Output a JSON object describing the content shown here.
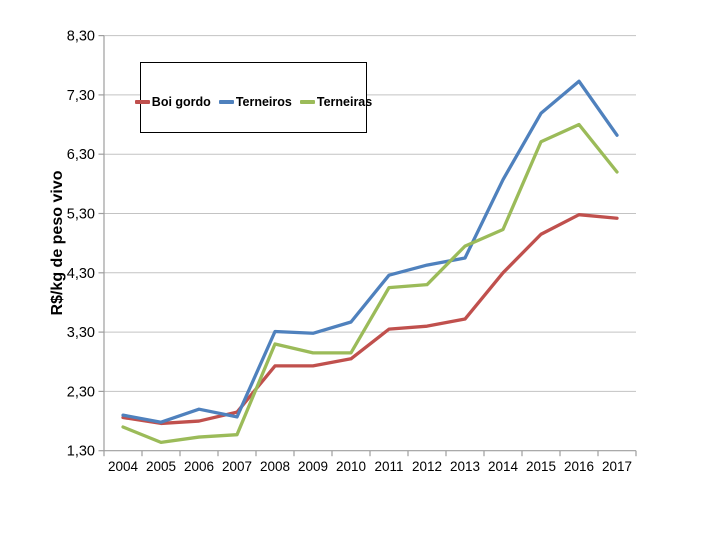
{
  "page": {
    "background": "#ffffff"
  },
  "chart_data": {
    "type": "line",
    "title": "",
    "xlabel": "",
    "ylabel": "R$/kg de peso vivo",
    "x": [
      "2004",
      "2005",
      "2006",
      "2007",
      "2008",
      "2009",
      "2010",
      "2011",
      "2012",
      "2013",
      "2014",
      "2015",
      "2016",
      "2017"
    ],
    "series": [
      {
        "name": "Boi gordo",
        "color": "#C0504D",
        "values": [
          1.86,
          1.76,
          1.8,
          1.95,
          2.73,
          2.73,
          2.85,
          3.35,
          3.4,
          3.52,
          4.3,
          4.95,
          5.28,
          5.22
        ]
      },
      {
        "name": "Terneiros",
        "color": "#4F81BD",
        "values": [
          1.9,
          1.78,
          2.0,
          1.87,
          3.31,
          3.28,
          3.47,
          4.26,
          4.43,
          4.55,
          5.87,
          6.99,
          7.53,
          6.62
        ]
      },
      {
        "name": "Terneiras",
        "color": "#9BBB59",
        "values": [
          1.7,
          1.44,
          1.53,
          1.57,
          3.1,
          2.95,
          2.95,
          4.05,
          4.1,
          4.75,
          5.03,
          6.51,
          6.8,
          6.0
        ]
      }
    ],
    "ylim": [
      1.3,
      8.3
    ],
    "ytick_step": 1.0,
    "ytick_labels": [
      "1,30",
      "2,30",
      "3,30",
      "4,30",
      "5,30",
      "6,30",
      "7,30",
      "8,30"
    ],
    "grid": true,
    "legend_position": "top-left-overlay",
    "gridline_color": "#c3c3c3",
    "axis_color": "#9e9e9e"
  }
}
